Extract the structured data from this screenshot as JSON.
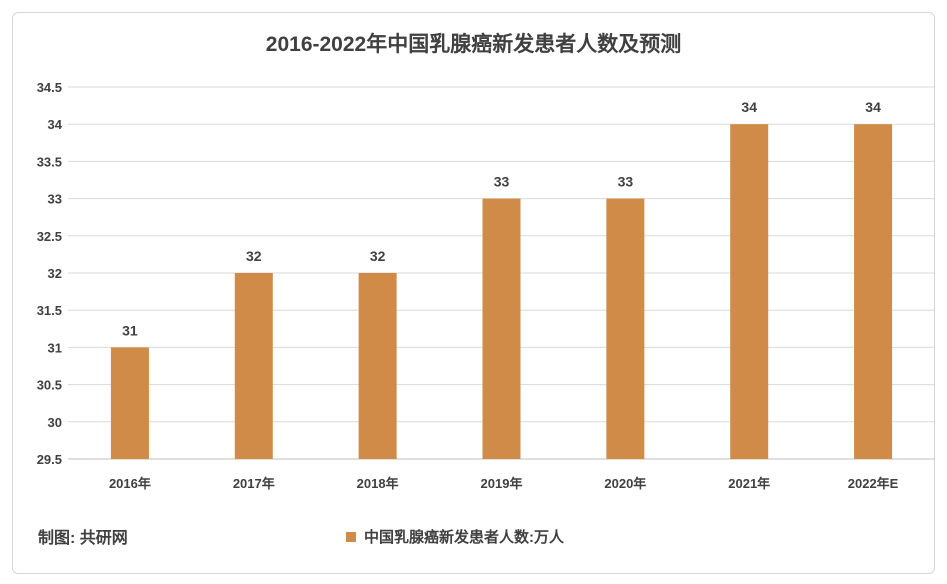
{
  "chart_data": {
    "type": "bar",
    "title": "2016-2022年中国乳腺癌新发患者人数及预测",
    "categories": [
      "2016年",
      "2017年",
      "2018年",
      "2019年",
      "2020年",
      "2021年",
      "2022年E"
    ],
    "series": [
      {
        "name": "中国乳腺癌新发患者人数:万人",
        "values": [
          31,
          32,
          32,
          33,
          33,
          34,
          34
        ]
      }
    ],
    "data_labels": [
      "31",
      "32",
      "32",
      "33",
      "33",
      "34",
      "34"
    ],
    "y_ticks": [
      "29.5",
      "30",
      "30.5",
      "31",
      "31.5",
      "32",
      "32.5",
      "33",
      "33.5",
      "34",
      "34.5"
    ],
    "ylim": [
      29.5,
      34.5
    ],
    "xlabel": "",
    "ylabel": "",
    "grid": true,
    "legend_position": "bottom",
    "bar_color": "#d08b48"
  },
  "source_label": "制图: 共研网"
}
